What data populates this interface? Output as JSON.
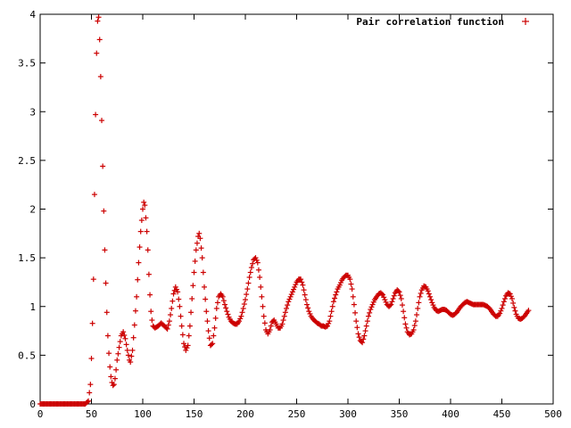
{
  "chart_data": {
    "type": "scatter",
    "title": "",
    "xlabel": "",
    "ylabel": "",
    "xlim": [
      0,
      500
    ],
    "ylim": [
      0,
      4
    ],
    "x_ticks": [
      "0",
      "50",
      "100",
      "150",
      "200",
      "250",
      "300",
      "350",
      "400",
      "450",
      "500"
    ],
    "y_ticks": [
      "0",
      "0.5",
      "1",
      "1.5",
      "2",
      "2.5",
      "3",
      "3.5",
      "4"
    ],
    "grid": false,
    "legend_position": "top-right",
    "marker": "+",
    "series": [
      {
        "name": "Pair correlation function",
        "color": "#cc0000",
        "anchors": [
          [
            0,
            0
          ],
          [
            44,
            0
          ],
          [
            47,
            0.03
          ],
          [
            49,
            0.2
          ],
          [
            50.5,
            0.6
          ],
          [
            52,
            1.28
          ],
          [
            53,
            2.15
          ],
          [
            54,
            2.97
          ],
          [
            55,
            3.6
          ],
          [
            56,
            3.93
          ],
          [
            57,
            3.97
          ],
          [
            58,
            3.74
          ],
          [
            59,
            3.36
          ],
          [
            60,
            2.91
          ],
          [
            61,
            2.44
          ],
          [
            62,
            1.98
          ],
          [
            63,
            1.58
          ],
          [
            64,
            1.24
          ],
          [
            65,
            0.94
          ],
          [
            66,
            0.7
          ],
          [
            67,
            0.52
          ],
          [
            68,
            0.38
          ],
          [
            69,
            0.28
          ],
          [
            70,
            0.22
          ],
          [
            71,
            0.19
          ],
          [
            72,
            0.2
          ],
          [
            73,
            0.26
          ],
          [
            74,
            0.35
          ],
          [
            75,
            0.45
          ],
          [
            77,
            0.58
          ],
          [
            79,
            0.7
          ],
          [
            81,
            0.74
          ],
          [
            83,
            0.67
          ],
          [
            85,
            0.55
          ],
          [
            87,
            0.45
          ],
          [
            88,
            0.43
          ],
          [
            90,
            0.55
          ],
          [
            92,
            0.81
          ],
          [
            94,
            1.1
          ],
          [
            96,
            1.45
          ],
          [
            98,
            1.77
          ],
          [
            100,
            2.0
          ],
          [
            101,
            2.07
          ],
          [
            102,
            2.04
          ],
          [
            103,
            1.91
          ],
          [
            104,
            1.77
          ],
          [
            105,
            1.58
          ],
          [
            106,
            1.33
          ],
          [
            107,
            1.12
          ],
          [
            108,
            0.95
          ],
          [
            109,
            0.86
          ],
          [
            110,
            0.8
          ],
          [
            112,
            0.78
          ],
          [
            115,
            0.8
          ],
          [
            118,
            0.83
          ],
          [
            121,
            0.8
          ],
          [
            124,
            0.77
          ],
          [
            126,
            0.85
          ],
          [
            128,
            0.98
          ],
          [
            130,
            1.13
          ],
          [
            132,
            1.2
          ],
          [
            134,
            1.15
          ],
          [
            136,
            1.0
          ],
          [
            138,
            0.8
          ],
          [
            140,
            0.62
          ],
          [
            142,
            0.55
          ],
          [
            144,
            0.6
          ],
          [
            146,
            0.8
          ],
          [
            148,
            1.08
          ],
          [
            150,
            1.35
          ],
          [
            152,
            1.58
          ],
          [
            154,
            1.72
          ],
          [
            155,
            1.75
          ],
          [
            156,
            1.7
          ],
          [
            158,
            1.5
          ],
          [
            160,
            1.2
          ],
          [
            162,
            0.95
          ],
          [
            164,
            0.75
          ],
          [
            166,
            0.6
          ],
          [
            168,
            0.62
          ],
          [
            170,
            0.78
          ],
          [
            172,
            0.98
          ],
          [
            174,
            1.1
          ],
          [
            176,
            1.13
          ],
          [
            178,
            1.1
          ],
          [
            180,
            1.02
          ],
          [
            182,
            0.95
          ],
          [
            184,
            0.89
          ],
          [
            186,
            0.85
          ],
          [
            188,
            0.83
          ],
          [
            190,
            0.82
          ],
          [
            192,
            0.82
          ],
          [
            194,
            0.85
          ],
          [
            196,
            0.9
          ],
          [
            198,
            0.98
          ],
          [
            200,
            1.07
          ],
          [
            202,
            1.18
          ],
          [
            204,
            1.3
          ],
          [
            206,
            1.4
          ],
          [
            208,
            1.48
          ],
          [
            210,
            1.5
          ],
          [
            212,
            1.45
          ],
          [
            214,
            1.3
          ],
          [
            216,
            1.1
          ],
          [
            218,
            0.9
          ],
          [
            220,
            0.76
          ],
          [
            222,
            0.72
          ],
          [
            224,
            0.76
          ],
          [
            226,
            0.84
          ],
          [
            228,
            0.86
          ],
          [
            230,
            0.82
          ],
          [
            232,
            0.78
          ],
          [
            234,
            0.78
          ],
          [
            236,
            0.82
          ],
          [
            238,
            0.9
          ],
          [
            240,
            0.98
          ],
          [
            242,
            1.05
          ],
          [
            244,
            1.1
          ],
          [
            246,
            1.15
          ],
          [
            248,
            1.2
          ],
          [
            250,
            1.25
          ],
          [
            252,
            1.28
          ],
          [
            254,
            1.28
          ],
          [
            256,
            1.22
          ],
          [
            258,
            1.12
          ],
          [
            260,
            1.02
          ],
          [
            262,
            0.95
          ],
          [
            264,
            0.9
          ],
          [
            266,
            0.87
          ],
          [
            268,
            0.85
          ],
          [
            270,
            0.83
          ],
          [
            272,
            0.82
          ],
          [
            274,
            0.8
          ],
          [
            276,
            0.8
          ],
          [
            278,
            0.79
          ],
          [
            280,
            0.8
          ],
          [
            282,
            0.85
          ],
          [
            284,
            0.95
          ],
          [
            286,
            1.05
          ],
          [
            288,
            1.12
          ],
          [
            290,
            1.18
          ],
          [
            292,
            1.22
          ],
          [
            294,
            1.27
          ],
          [
            296,
            1.3
          ],
          [
            298,
            1.32
          ],
          [
            300,
            1.32
          ],
          [
            302,
            1.28
          ],
          [
            304,
            1.18
          ],
          [
            306,
            1.02
          ],
          [
            308,
            0.85
          ],
          [
            310,
            0.72
          ],
          [
            312,
            0.65
          ],
          [
            314,
            0.63
          ],
          [
            316,
            0.7
          ],
          [
            318,
            0.8
          ],
          [
            320,
            0.9
          ],
          [
            322,
            0.97
          ],
          [
            324,
            1.02
          ],
          [
            326,
            1.07
          ],
          [
            328,
            1.1
          ],
          [
            330,
            1.13
          ],
          [
            332,
            1.14
          ],
          [
            334,
            1.12
          ],
          [
            336,
            1.07
          ],
          [
            338,
            1.02
          ],
          [
            340,
            1.0
          ],
          [
            342,
            1.02
          ],
          [
            344,
            1.08
          ],
          [
            346,
            1.14
          ],
          [
            348,
            1.17
          ],
          [
            350,
            1.15
          ],
          [
            352,
            1.08
          ],
          [
            354,
            0.95
          ],
          [
            356,
            0.82
          ],
          [
            358,
            0.74
          ],
          [
            360,
            0.71
          ],
          [
            362,
            0.72
          ],
          [
            364,
            0.76
          ],
          [
            366,
            0.85
          ],
          [
            368,
            0.98
          ],
          [
            370,
            1.1
          ],
          [
            372,
            1.17
          ],
          [
            374,
            1.21
          ],
          [
            376,
            1.2
          ],
          [
            378,
            1.16
          ],
          [
            380,
            1.1
          ],
          [
            382,
            1.04
          ],
          [
            384,
            0.99
          ],
          [
            386,
            0.96
          ],
          [
            388,
            0.95
          ],
          [
            390,
            0.96
          ],
          [
            392,
            0.97
          ],
          [
            394,
            0.97
          ],
          [
            396,
            0.96
          ],
          [
            398,
            0.94
          ],
          [
            400,
            0.92
          ],
          [
            402,
            0.91
          ],
          [
            404,
            0.92
          ],
          [
            406,
            0.94
          ],
          [
            408,
            0.97
          ],
          [
            410,
            1.0
          ],
          [
            412,
            1.02
          ],
          [
            414,
            1.04
          ],
          [
            416,
            1.05
          ],
          [
            418,
            1.04
          ],
          [
            420,
            1.03
          ],
          [
            422,
            1.02
          ],
          [
            424,
            1.02
          ],
          [
            426,
            1.02
          ],
          [
            428,
            1.02
          ],
          [
            430,
            1.02
          ],
          [
            432,
            1.02
          ],
          [
            434,
            1.01
          ],
          [
            436,
            1.0
          ],
          [
            438,
            0.98
          ],
          [
            440,
            0.95
          ],
          [
            442,
            0.92
          ],
          [
            444,
            0.9
          ],
          [
            446,
            0.9
          ],
          [
            448,
            0.93
          ],
          [
            450,
            0.98
          ],
          [
            452,
            1.05
          ],
          [
            454,
            1.11
          ],
          [
            456,
            1.14
          ],
          [
            458,
            1.13
          ],
          [
            460,
            1.08
          ],
          [
            462,
            0.99
          ],
          [
            464,
            0.92
          ],
          [
            466,
            0.88
          ],
          [
            468,
            0.87
          ],
          [
            470,
            0.88
          ],
          [
            472,
            0.9
          ],
          [
            474,
            0.93
          ],
          [
            476,
            0.96
          ]
        ]
      }
    ]
  }
}
